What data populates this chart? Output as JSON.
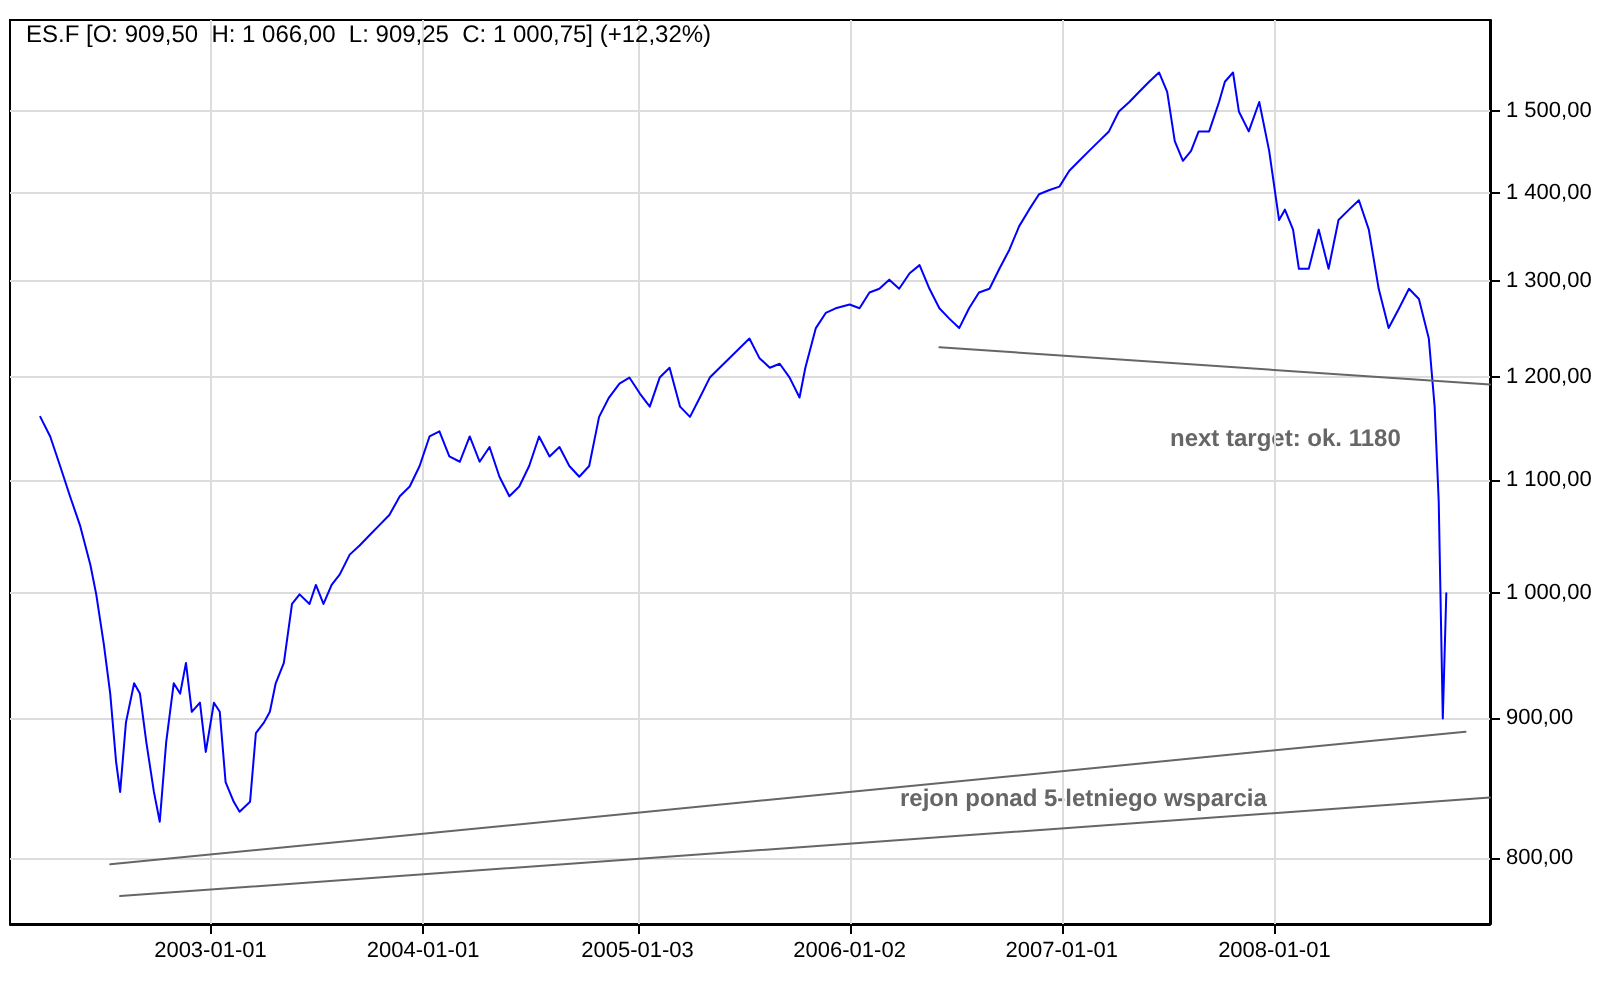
{
  "chart_data": {
    "type": "line",
    "title": "ES.F [O: 909,50  H: 1 066,00  L: 909,25  C: 1 000,75] (+12,32%)",
    "annotations": [
      "next target: ok. 1180",
      "rejon ponad 5-letniego wsparcia"
    ],
    "xlim": [
      "2002-01-22",
      "2009-01-05"
    ],
    "xticks": [
      "2003-01-01",
      "2004-01-01",
      "2005-01-03",
      "2006-01-02",
      "2007-01-01",
      "2008-01-01"
    ],
    "ylim": [
      757,
      1620
    ],
    "yticks": [
      {
        "value": 800,
        "label": "800,00"
      },
      {
        "value": 900,
        "label": "900,00"
      },
      {
        "value": 1000,
        "label": "1 000,00"
      },
      {
        "value": 1100,
        "label": "1 100,00"
      },
      {
        "value": 1200,
        "label": "1 200,00"
      },
      {
        "value": 1300,
        "label": "1 300,00"
      },
      {
        "value": 1400,
        "label": "1 400,00"
      },
      {
        "value": 1500,
        "label": "1 500,00"
      }
    ],
    "log": "y",
    "grid": true,
    "marker": "none",
    "line_style": "solid",
    "series": [
      {
        "color": "#0000ff",
        "x": [
          "2002-03-15",
          "2002-04-01",
          "2002-04-18",
          "2002-05-05",
          "2002-05-22",
          "2002-06-09",
          "2002-06-19",
          "2002-07-02",
          "2002-07-13",
          "2002-07-23",
          "2002-07-30",
          "2002-08-09",
          "2002-08-23",
          "2002-09-02",
          "2002-09-13",
          "2002-09-26",
          "2002-10-06",
          "2002-10-17",
          "2002-10-30",
          "2002-11-10",
          "2002-11-20",
          "2002-11-30",
          "2002-12-14",
          "2002-12-24",
          "2003-01-07",
          "2003-01-17",
          "2003-01-27",
          "2003-02-10",
          "2003-02-20",
          "2003-03-10",
          "2003-03-20",
          "2003-04-03",
          "2003-04-13",
          "2003-04-23",
          "2003-05-07",
          "2003-05-21",
          "2003-06-03",
          "2003-06-20",
          "2003-07-01",
          "2003-07-14",
          "2003-07-28",
          "2003-08-11",
          "2003-08-28",
          "2003-09-14",
          "2003-10-01",
          "2003-10-18",
          "2003-11-04",
          "2003-11-22",
          "2003-12-09",
          "2003-12-26",
          "2004-01-12",
          "2004-01-29",
          "2004-02-15",
          "2004-03-04",
          "2004-03-21",
          "2004-04-07",
          "2004-04-24",
          "2004-05-11",
          "2004-05-28",
          "2004-06-14",
          "2004-07-01",
          "2004-07-18",
          "2004-08-05",
          "2004-08-22",
          "2004-09-08",
          "2004-09-25",
          "2004-10-12",
          "2004-10-29",
          "2004-11-15",
          "2004-12-03",
          "2004-12-20",
          "2005-01-07",
          "2005-01-24",
          "2005-02-10",
          "2005-02-27",
          "2005-03-17",
          "2005-04-03",
          "2005-04-20",
          "2005-05-07",
          "2005-05-24",
          "2005-06-10",
          "2005-06-27",
          "2005-07-14",
          "2005-07-31",
          "2005-08-18",
          "2005-09-04",
          "2005-09-21",
          "2005-10-08",
          "2005-10-18",
          "2005-11-05",
          "2005-11-22",
          "2005-12-09",
          "2006-01-02",
          "2006-01-19",
          "2006-02-05",
          "2006-02-22",
          "2006-03-11",
          "2006-03-28",
          "2006-04-15",
          "2006-05-02",
          "2006-05-19",
          "2006-06-05",
          "2006-06-22",
          "2006-07-09",
          "2006-07-26",
          "2006-08-12",
          "2006-08-30",
          "2006-09-16",
          "2006-10-03",
          "2006-10-20",
          "2006-11-06",
          "2006-11-23",
          "2006-12-11",
          "2006-12-28",
          "2007-01-14",
          "2007-01-31",
          "2007-02-17",
          "2007-03-06",
          "2007-03-23",
          "2007-04-09",
          "2007-04-27",
          "2007-05-14",
          "2007-05-31",
          "2007-06-17",
          "2007-07-01",
          "2007-07-14",
          "2007-07-28",
          "2007-08-11",
          "2007-08-24",
          "2007-09-11",
          "2007-09-28",
          "2007-10-08",
          "2007-10-22",
          "2007-11-01",
          "2007-11-18",
          "2007-12-06",
          "2007-12-23",
          "2008-01-09",
          "2008-01-19",
          "2008-02-02",
          "2008-02-12",
          "2008-02-29",
          "2008-03-17",
          "2008-04-03",
          "2008-04-20",
          "2008-05-08",
          "2008-05-25",
          "2008-06-11",
          "2008-06-28",
          "2008-07-15",
          "2008-08-02",
          "2008-08-19",
          "2008-09-05",
          "2008-09-22",
          "2008-10-02",
          "2008-10-09",
          "2008-10-16",
          "2008-10-22"
        ],
        "values": [
          1160,
          1141,
          1113,
          1085,
          1059,
          1024,
          999,
          958,
          919,
          868,
          846,
          897,
          927,
          919,
          882,
          846,
          825,
          882,
          927,
          919,
          943,
          905,
          912,
          875,
          912,
          905,
          853,
          839,
          832,
          839,
          889,
          897,
          905,
          927,
          943,
          991,
          999,
          991,
          1007,
          991,
          1007,
          1016,
          1033,
          1041,
          1050,
          1059,
          1068,
          1085,
          1094,
          1113,
          1141,
          1146,
          1122,
          1117,
          1141,
          1117,
          1131,
          1103,
          1085,
          1094,
          1113,
          1141,
          1122,
          1131,
          1113,
          1103,
          1113,
          1160,
          1179,
          1193,
          1199,
          1183,
          1170,
          1199,
          1209,
          1170,
          1160,
          1179,
          1199,
          1209,
          1219,
          1229,
          1239,
          1219,
          1209,
          1213,
          1199,
          1179,
          1209,
          1250,
          1266,
          1271,
          1275,
          1271,
          1288,
          1292,
          1302,
          1292,
          1309,
          1318,
          1292,
          1271,
          1260,
          1250,
          1271,
          1288,
          1292,
          1314,
          1335,
          1362,
          1381,
          1399,
          1404,
          1408,
          1427,
          1439,
          1451,
          1463,
          1475,
          1500,
          1512,
          1525,
          1538,
          1550,
          1525,
          1463,
          1439,
          1451,
          1475,
          1475,
          1512,
          1538,
          1550,
          1500,
          1475,
          1512,
          1451,
          1369,
          1381,
          1358,
          1314,
          1314,
          1358,
          1314,
          1369,
          1381,
          1392,
          1358,
          1292,
          1250,
          1271,
          1292,
          1281,
          1239,
          1170,
          1080,
          900,
          1000
        ]
      },
      {
        "color": "#666666",
        "x": [
          "2002-07-13",
          "2008-11-24"
        ],
        "values": [
          796,
          890
        ]
      },
      {
        "color": "#666666",
        "x": [
          "2002-07-30",
          "2009-01-05"
        ],
        "values": [
          775,
          842
        ]
      },
      {
        "color": "#666666",
        "x": [
          "2006-06-05",
          "2009-01-05"
        ],
        "values": [
          1230,
          1192
        ]
      }
    ]
  }
}
